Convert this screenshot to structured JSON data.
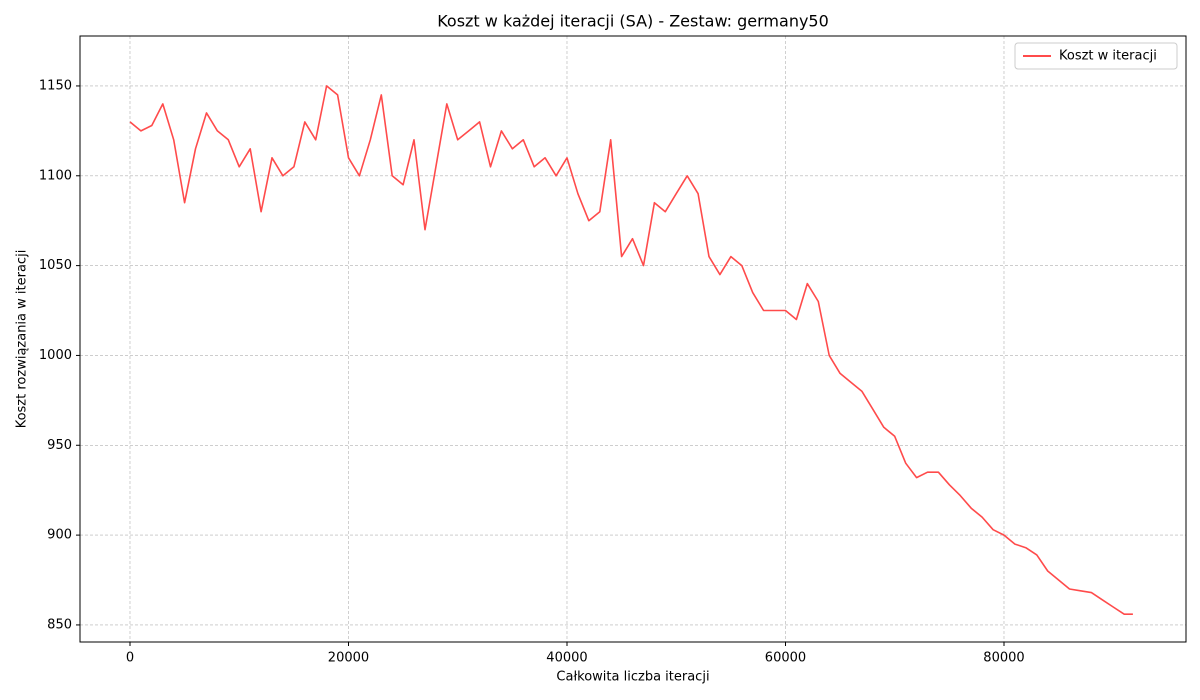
{
  "chart_data": {
    "type": "line",
    "title": "Koszt w każdej iteracji (SA) - Zestaw: germany50",
    "xlabel": "Całkowita liczba iteracji",
    "ylabel": "Koszt rozwiązania w iteracji",
    "x": [
      0,
      1000,
      2000,
      3000,
      4000,
      5000,
      6000,
      7000,
      8000,
      9000,
      10000,
      11000,
      12000,
      13000,
      14000,
      15000,
      16000,
      17000,
      18000,
      19000,
      20000,
      21000,
      22000,
      23000,
      24000,
      25000,
      26000,
      27000,
      28000,
      29000,
      30000,
      31000,
      32000,
      33000,
      34000,
      35000,
      36000,
      37000,
      38000,
      39000,
      40000,
      41000,
      42000,
      43000,
      44000,
      45000,
      46000,
      47000,
      48000,
      49000,
      50000,
      51000,
      52000,
      53000,
      54000,
      55000,
      56000,
      57000,
      58000,
      59000,
      60000,
      61000,
      62000,
      63000,
      64000,
      65000,
      66000,
      67000,
      68000,
      69000,
      70000,
      71000,
      72000,
      73000,
      74000,
      75000,
      76000,
      77000,
      78000,
      79000,
      80000,
      81000,
      82000,
      83000,
      84000,
      85000,
      86000,
      87000,
      88000,
      89000,
      90000,
      91000,
      91800
    ],
    "series": [
      {
        "name": "Koszt w iteracji",
        "color": "#ff4b4b",
        "values": [
          1130,
          1125,
          1128,
          1140,
          1120,
          1085,
          1115,
          1135,
          1125,
          1120,
          1105,
          1115,
          1080,
          1110,
          1100,
          1105,
          1130,
          1120,
          1150,
          1145,
          1110,
          1100,
          1120,
          1145,
          1100,
          1095,
          1120,
          1070,
          1105,
          1140,
          1120,
          1125,
          1130,
          1105,
          1125,
          1115,
          1120,
          1105,
          1110,
          1100,
          1110,
          1090,
          1075,
          1080,
          1120,
          1055,
          1065,
          1050,
          1085,
          1080,
          1090,
          1100,
          1090,
          1055,
          1045,
          1055,
          1050,
          1035,
          1025,
          1025,
          1025,
          1020,
          1040,
          1030,
          1000,
          990,
          985,
          980,
          970,
          960,
          955,
          940,
          932,
          935,
          935,
          928,
          922,
          915,
          910,
          903,
          900,
          895,
          893,
          889,
          880,
          875,
          870,
          869,
          868,
          864,
          860,
          856,
          856
        ]
      }
    ],
    "xlim": [
      -4576,
      96660
    ],
    "xticks": [
      0,
      20000,
      40000,
      60000,
      80000
    ],
    "ylim": [
      840.5,
      1177.8
    ],
    "yticks": [
      850,
      900,
      950,
      1000,
      1050,
      1100,
      1150
    ],
    "grid": true,
    "legend": "upper right"
  }
}
